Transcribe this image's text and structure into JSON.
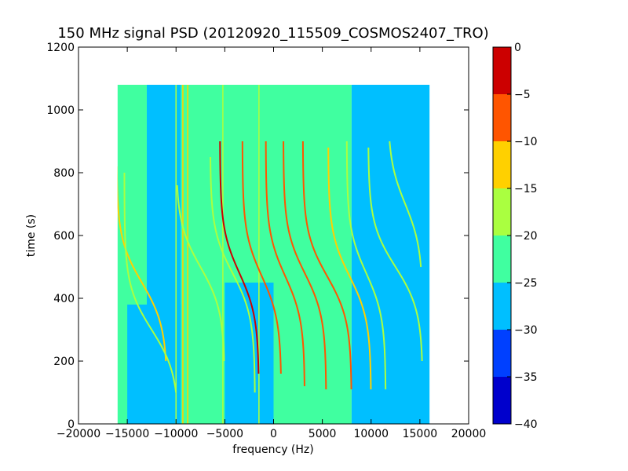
{
  "chart_data": {
    "type": "heatmap",
    "title": "150 MHz signal PSD (20120920_115509_COSMOS2407_TRO)",
    "xlabel": "frequency (Hz)",
    "ylabel": "time (s)",
    "xlim": [
      -20000,
      20000
    ],
    "ylim": [
      0,
      1200
    ],
    "xticks": [
      -20000,
      -15000,
      -10000,
      -5000,
      0,
      5000,
      10000,
      15000,
      20000
    ],
    "xtick_labels": [
      "−20000",
      "−15000",
      "−10000",
      "−5000",
      "0",
      "5000",
      "10000",
      "15000",
      "20000"
    ],
    "yticks": [
      0,
      200,
      400,
      600,
      800,
      1000,
      1200
    ],
    "ytick_labels": [
      "0",
      "200",
      "400",
      "600",
      "800",
      "1000",
      "1200"
    ],
    "data_extent": {
      "freq": [
        -16000,
        16000
      ],
      "time": [
        0,
        1080
      ]
    },
    "colorbar": {
      "range": [
        -40,
        0
      ],
      "ticks": [
        0,
        -5,
        -10,
        -15,
        -20,
        -25,
        -30,
        -35,
        -40
      ],
      "tick_labels": [
        "0",
        "−5",
        "−10",
        "−15",
        "−20",
        "−25",
        "−30",
        "−35",
        "−40"
      ],
      "levels": [
        {
          "from": -40,
          "to": -35,
          "color": "#0000cc"
        },
        {
          "from": -35,
          "to": -30,
          "color": "#0040ff"
        },
        {
          "from": -30,
          "to": -25,
          "color": "#00bfff"
        },
        {
          "from": -25,
          "to": -20,
          "color": "#40ffa0"
        },
        {
          "from": -20,
          "to": -15,
          "color": "#aaff40"
        },
        {
          "from": -15,
          "to": -10,
          "color": "#ffd000"
        },
        {
          "from": -10,
          "to": -5,
          "color": "#ff5500"
        },
        {
          "from": -5,
          "to": 0,
          "color": "#cc0000"
        }
      ]
    },
    "background_regions": [
      {
        "freq": [
          -16000,
          -13000
        ],
        "time": [
          0,
          1080
        ],
        "level": -22
      },
      {
        "freq": [
          -13000,
          -9500
        ],
        "time": [
          0,
          1080
        ],
        "level": -27
      },
      {
        "freq": [
          -9500,
          8000
        ],
        "time": [
          0,
          1080
        ],
        "level": -22
      },
      {
        "freq": [
          8000,
          16000
        ],
        "time": [
          0,
          1080
        ],
        "level": -27
      },
      {
        "freq": [
          -15000,
          -9500
        ],
        "time": [
          0,
          380
        ],
        "level": -27
      },
      {
        "freq": [
          -5000,
          0
        ],
        "time": [
          0,
          450
        ],
        "level": -27
      }
    ],
    "vertical_lines": [
      {
        "freq": -10000,
        "time": [
          0,
          1080
        ],
        "level": -17
      },
      {
        "freq": -9300,
        "time": [
          0,
          1080
        ],
        "level": -14
      },
      {
        "freq": -8800,
        "time": [
          0,
          1080
        ],
        "level": -14
      },
      {
        "freq": -5200,
        "time": [
          0,
          1080
        ],
        "level": -17
      },
      {
        "freq": -1500,
        "time": [
          0,
          1080
        ],
        "level": -19
      }
    ],
    "signal_traces": [
      {
        "center_freq": -13500,
        "center_time": 450,
        "amplitude": 2600,
        "level": -15,
        "time_range": [
          200,
          820
        ]
      },
      {
        "center_freq": -12500,
        "center_time": 300,
        "amplitude": 2800,
        "level": -17,
        "time_range": [
          100,
          800
        ]
      },
      {
        "center_freq": -7500,
        "center_time": 500,
        "amplitude": 2500,
        "level": -16,
        "time_range": [
          200,
          760
        ]
      },
      {
        "center_freq": -4200,
        "center_time": 480,
        "amplitude": 2300,
        "level": -16,
        "time_range": [
          100,
          850
        ]
      },
      {
        "center_freq": -3500,
        "center_time": 480,
        "amplitude": 2000,
        "level": -5,
        "time_range": [
          160,
          900
        ]
      },
      {
        "center_freq": -1200,
        "center_time": 470,
        "amplitude": 2000,
        "level": -7,
        "time_range": [
          160,
          900
        ]
      },
      {
        "center_freq": 1200,
        "center_time": 470,
        "amplitude": 2000,
        "level": -8,
        "time_range": [
          120,
          900
        ]
      },
      {
        "center_freq": 3200,
        "center_time": 480,
        "amplitude": 2200,
        "level": -6,
        "time_range": [
          110,
          900
        ]
      },
      {
        "center_freq": 5500,
        "center_time": 470,
        "amplitude": 2500,
        "level": -9,
        "time_range": [
          110,
          900
        ]
      },
      {
        "center_freq": 7800,
        "center_time": 470,
        "amplitude": 2200,
        "level": -12,
        "time_range": [
          110,
          880
        ]
      },
      {
        "center_freq": 9500,
        "center_time": 480,
        "amplitude": 2000,
        "level": -16,
        "time_range": [
          110,
          900
        ]
      },
      {
        "center_freq": 12500,
        "center_time": 500,
        "amplitude": 2800,
        "level": -16,
        "time_range": [
          200,
          880
        ]
      },
      {
        "center_freq": 13500,
        "center_time": 700,
        "amplitude": 1800,
        "level": -17,
        "time_range": [
          500,
          900
        ]
      }
    ]
  }
}
